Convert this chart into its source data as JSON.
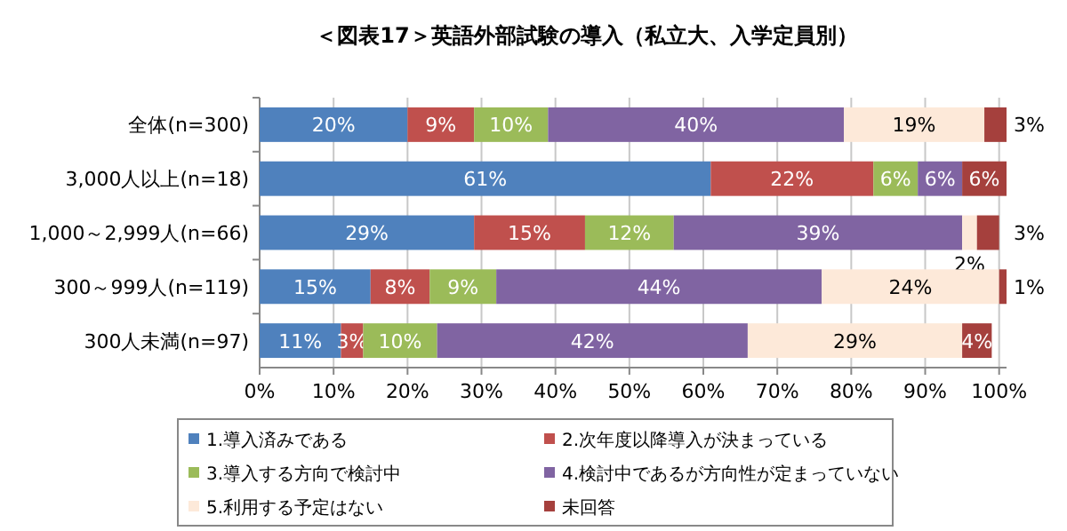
{
  "chart_data": {
    "type": "bar",
    "orientation": "horizontal",
    "stacked": true,
    "title": "＜図表17＞英語外部試験の導入（私立大、入学定員別）",
    "categories": [
      "全体(n=300)",
      "3,000人以上(n=18)",
      "1,000～2,999人(n=66)",
      "300～999人(n=119)",
      "300人未満(n=97)"
    ],
    "series": [
      {
        "name": "1.導入済みである",
        "color": "#4f81bd",
        "values": [
          20,
          61,
          29,
          15,
          11
        ],
        "value_labels": [
          "20%",
          "61%",
          "29%",
          "15%",
          "11%"
        ]
      },
      {
        "name": "2.次年度以降導入が決まっている",
        "color": "#c0504d",
        "values": [
          9,
          22,
          15,
          8,
          3
        ],
        "value_labels": [
          "9%",
          "22%",
          "15%",
          "8%",
          "3%"
        ]
      },
      {
        "name": "3.導入する方向で検討中",
        "color": "#9bbb59",
        "values": [
          10,
          6,
          12,
          9,
          10
        ],
        "value_labels": [
          "10%",
          "6%",
          "12%",
          "9%",
          "10%"
        ]
      },
      {
        "name": "4.検討中であるが方向性が定まっていない",
        "color": "#8064a2",
        "values": [
          40,
          6,
          39,
          44,
          42
        ],
        "value_labels": [
          "40%",
          "6%",
          "39%",
          "44%",
          "42%"
        ]
      },
      {
        "name": "5.利用する予定はない",
        "color": "#fde9d9",
        "values": [
          19,
          null,
          2,
          24,
          29
        ],
        "value_labels": [
          "19%",
          null,
          "2%",
          "24%",
          "29%"
        ]
      },
      {
        "name": "未回答",
        "color": "#a5403d",
        "values": [
          3,
          6,
          3,
          1,
          4
        ],
        "value_labels": [
          "3%",
          "6%",
          "3%",
          "1%",
          "4%"
        ]
      }
    ],
    "xlim": [
      0,
      101
    ],
    "xticks": [
      {
        "value": 0,
        "label": "0%"
      },
      {
        "value": 10,
        "label": "10%"
      },
      {
        "value": 20,
        "label": "20%"
      },
      {
        "value": 30,
        "label": "30%"
      },
      {
        "value": 40,
        "label": "40%"
      },
      {
        "value": 50,
        "label": "50%"
      },
      {
        "value": 60,
        "label": "60%"
      },
      {
        "value": 70,
        "label": "70%"
      },
      {
        "value": 80,
        "label": "80%"
      },
      {
        "value": 90,
        "label": "90%"
      },
      {
        "value": 100,
        "label": "100%"
      }
    ],
    "grid": "x",
    "legend": "bottom"
  }
}
